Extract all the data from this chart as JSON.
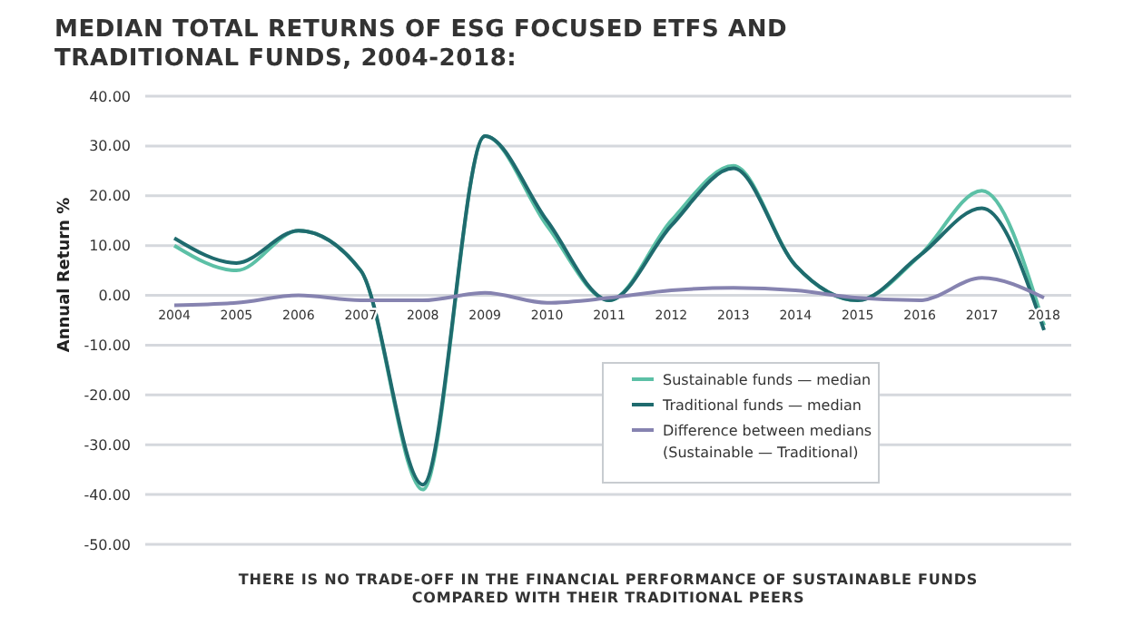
{
  "chart_data": {
    "type": "line",
    "title": "MEDIAN TOTAL RETURNS OF ESG FOCUSED ETFS AND TRADITIONAL FUNDS, 2004-2018:",
    "ylabel": "Annual Return %",
    "categories": [
      "2004",
      "2005",
      "2006",
      "2007",
      "2008",
      "2009",
      "2010",
      "2011",
      "2012",
      "2013",
      "2014",
      "2015",
      "2016",
      "2017",
      "2018"
    ],
    "series": [
      {
        "name": "Sustainable funds — median",
        "color": "#5cc0a6",
        "values": [
          10,
          5,
          13,
          5,
          -39,
          32,
          14,
          -1,
          15,
          26,
          6,
          -1,
          8,
          21,
          -6
        ]
      },
      {
        "name": "Traditional funds — median",
        "color": "#1f6b6e",
        "values": [
          11.5,
          6.5,
          13,
          5,
          -38,
          32,
          15,
          -1,
          14,
          25.5,
          6,
          -1,
          8,
          17.5,
          -7
        ]
      },
      {
        "name": "Difference between medians (Sustainable — Traditional)",
        "color": "#8683b0",
        "values": [
          -2,
          -1.5,
          0,
          -1,
          -1,
          0.5,
          -1.5,
          -0.5,
          1,
          1.5,
          1,
          -0.5,
          -1,
          3.5,
          -0.5
        ]
      }
    ],
    "ylim": [
      -50,
      40
    ],
    "yticks": [
      {
        "value": -50,
        "label": "-50.00"
      },
      {
        "value": -40,
        "label": "-40.00"
      },
      {
        "value": -30,
        "label": "-30.00"
      },
      {
        "value": -20,
        "label": "-20.00"
      },
      {
        "value": -10,
        "label": "-10.00"
      },
      {
        "value": 0,
        "label": "0.00"
      },
      {
        "value": 10,
        "label": "10.00"
      },
      {
        "value": 20,
        "label": "20.00"
      },
      {
        "value": 30,
        "label": "30.00"
      },
      {
        "value": 40,
        "label": "40.00"
      }
    ],
    "grid": "y",
    "legend": "bottom right",
    "marker": "none",
    "line_style": "solid",
    "annotations": [
      "THERE IS NO TRADE-OFF IN THE FINANCIAL PERFORMANCE OF SUSTAINABLE FUNDS COMPARED WITH THEIR TRADITIONAL PEERS"
    ]
  }
}
